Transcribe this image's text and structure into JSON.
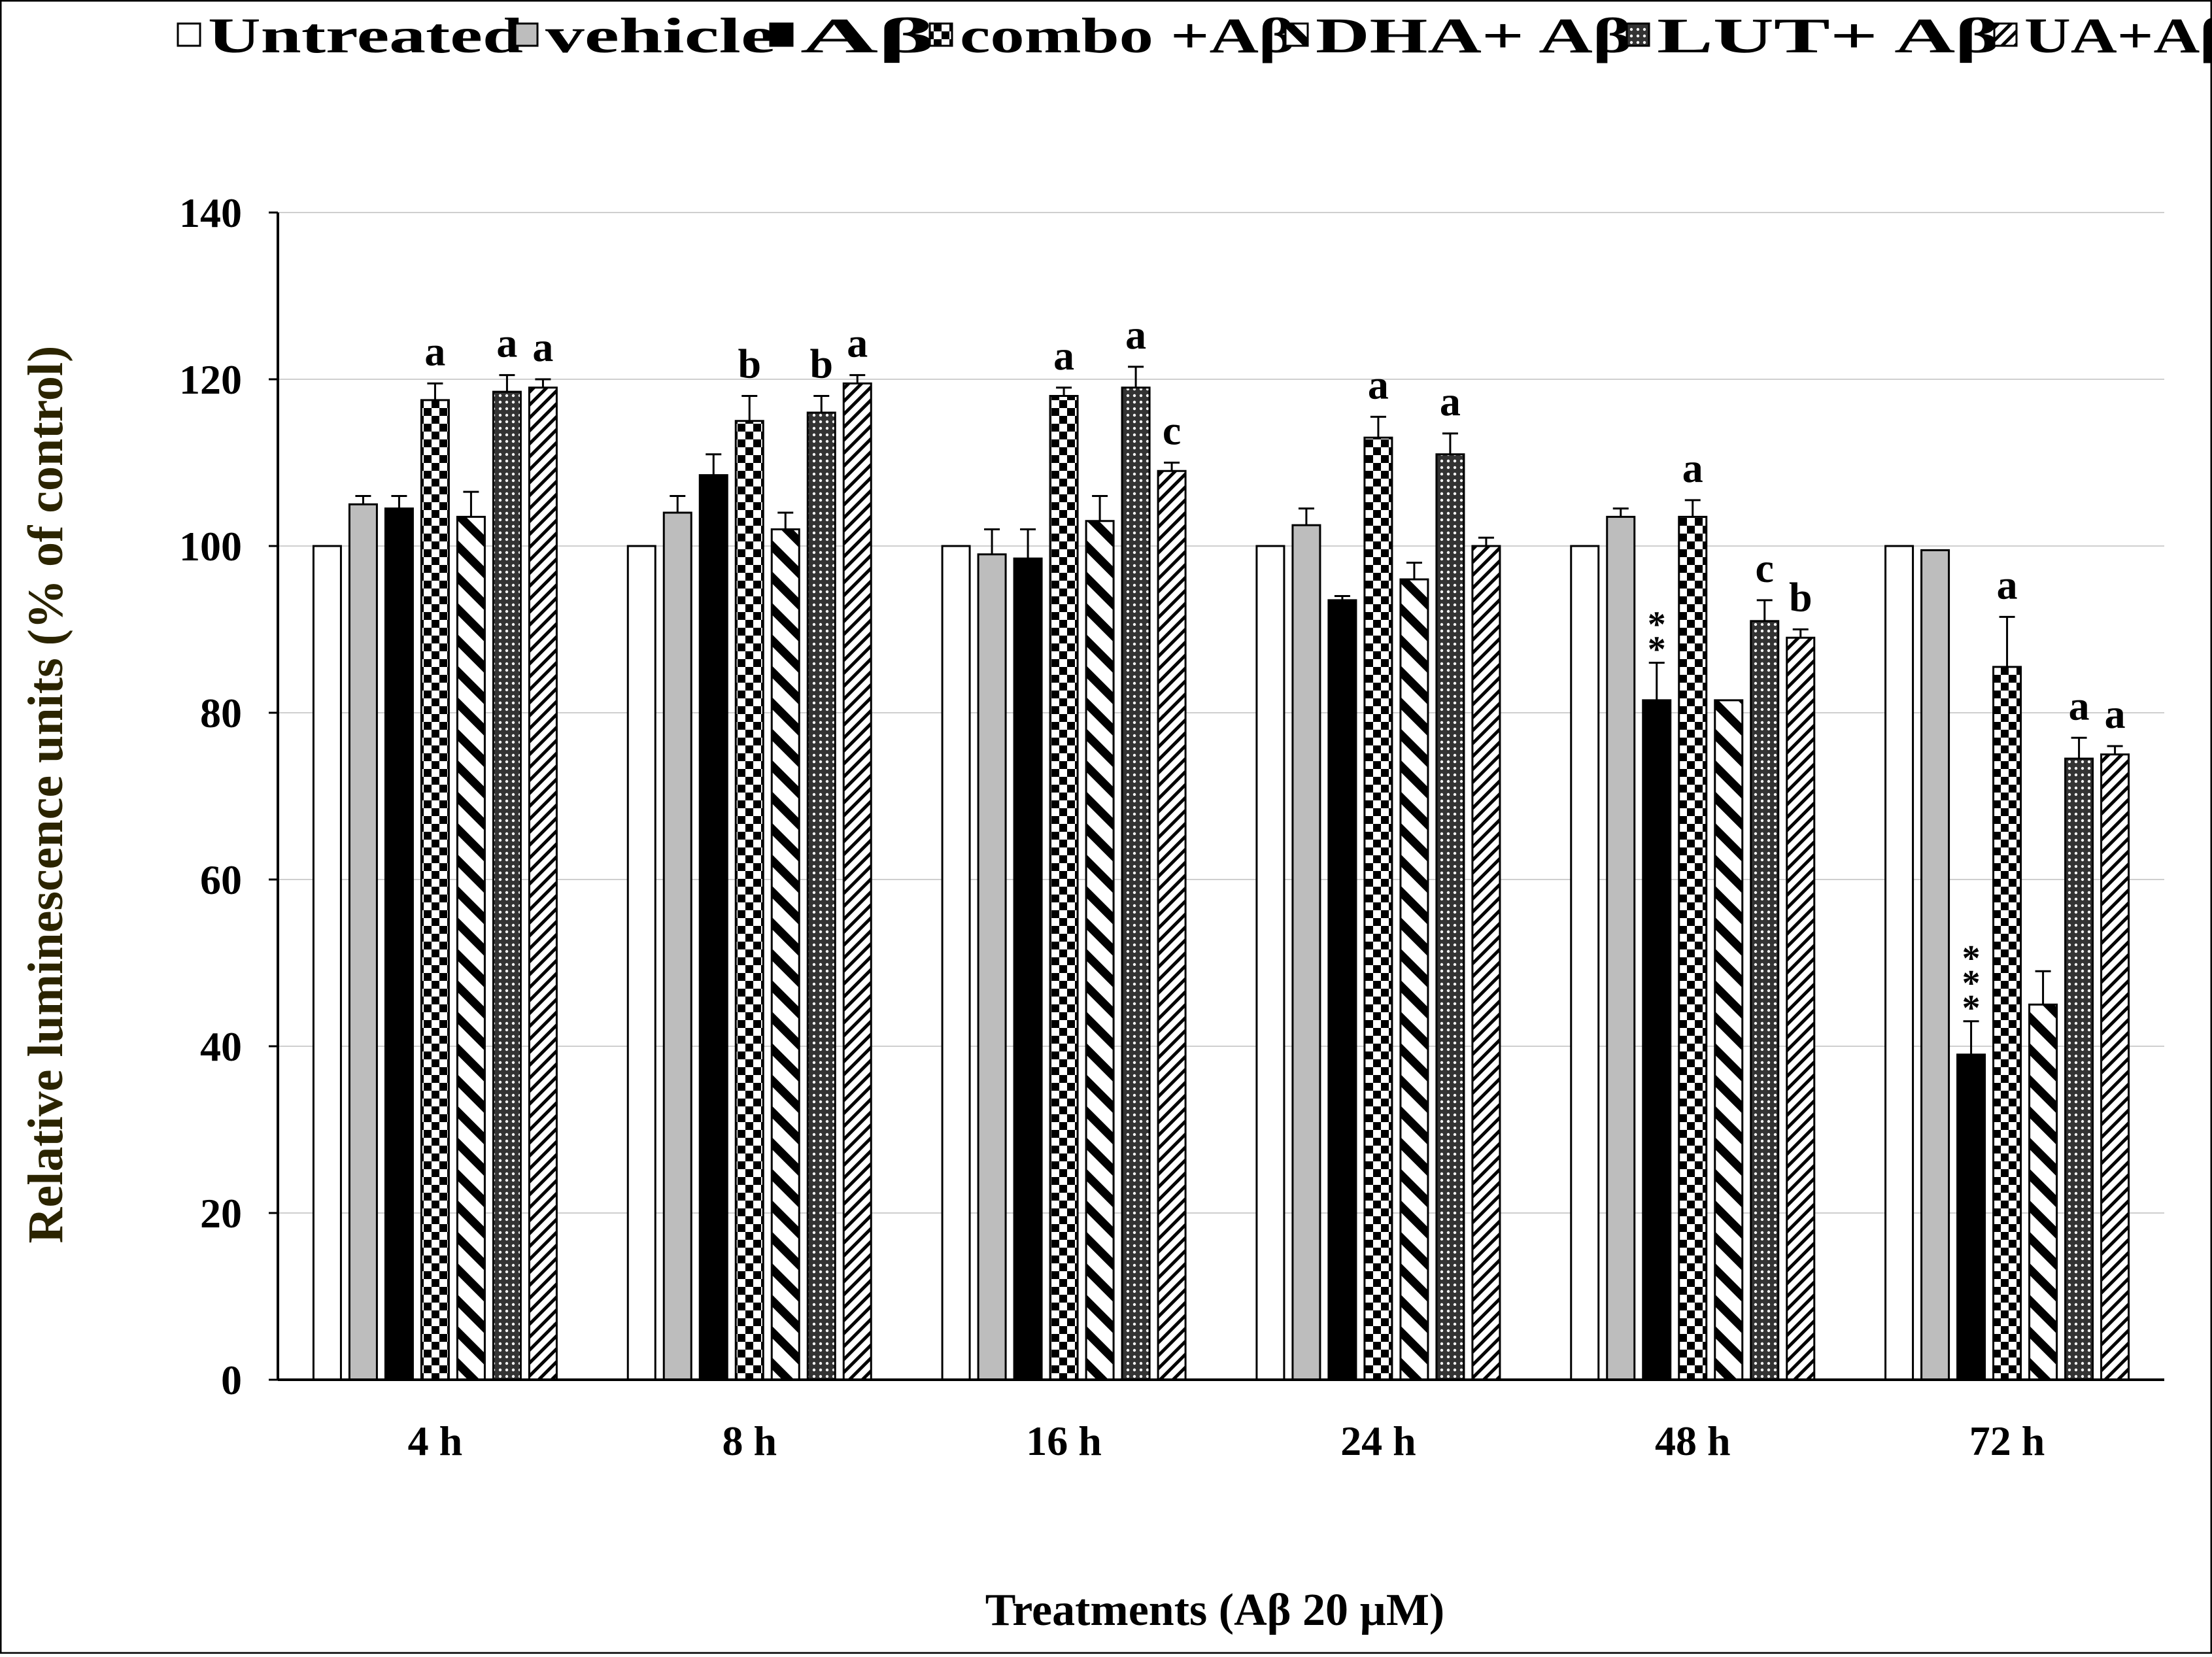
{
  "chart_data": {
    "type": "bar",
    "title": "",
    "xlabel": "Treatments (Aβ 20 µM)",
    "ylabel": "Relative luminescence units (% of control)",
    "ylim": [
      0,
      140
    ],
    "yticks": [
      0,
      20,
      40,
      60,
      80,
      100,
      120,
      140
    ],
    "grid": true,
    "legend_position": "top",
    "categories": [
      "4 h",
      "8 h",
      "16 h",
      "24 h",
      "48 h",
      "72 h"
    ],
    "series": [
      {
        "name": "Untreated",
        "pattern": "white",
        "values": [
          100,
          100,
          100,
          100,
          100,
          100
        ],
        "errors": [
          0,
          0,
          0,
          0,
          0,
          0
        ],
        "annotations": [
          "",
          "",
          "",
          "",
          "",
          ""
        ]
      },
      {
        "name": "vehicle",
        "pattern": "gray",
        "values": [
          105,
          104,
          99,
          102.5,
          103.5,
          99.5
        ],
        "errors": [
          1,
          2,
          3,
          2,
          1,
          0.3
        ],
        "annotations": [
          "",
          "",
          "",
          "",
          "",
          ""
        ]
      },
      {
        "name": "Aβ",
        "pattern": "black",
        "values": [
          104.5,
          108.5,
          98.5,
          93.5,
          81.5,
          39
        ],
        "errors": [
          1.5,
          2.5,
          3.5,
          0.5,
          4.5,
          4
        ],
        "annotations": [
          "",
          "",
          "",
          "",
          "**",
          "***"
        ]
      },
      {
        "name": "combo +Aβ",
        "pattern": "checker",
        "values": [
          117.5,
          115,
          118,
          113,
          103.5,
          85.5
        ],
        "errors": [
          2,
          3,
          1,
          2.5,
          2,
          6
        ],
        "annotations": [
          "a",
          "b",
          "a",
          "a",
          "a",
          "a"
        ]
      },
      {
        "name": "DHA+ Aβ",
        "pattern": "wide-diagonal",
        "values": [
          103.5,
          102,
          103,
          96,
          81.5,
          45
        ],
        "errors": [
          3,
          2,
          3,
          2,
          0.3,
          4
        ],
        "annotations": [
          "",
          "",
          "",
          "",
          "",
          ""
        ]
      },
      {
        "name": "LUT+ Aβ",
        "pattern": "dots",
        "values": [
          118.5,
          116,
          119,
          111,
          91,
          74.5
        ],
        "errors": [
          2,
          2,
          2.5,
          2.5,
          2.5,
          2.5
        ],
        "annotations": [
          "a",
          "b",
          "a",
          "a",
          "c",
          "a"
        ]
      },
      {
        "name": "UA+Aβ",
        "pattern": "dense-diagonal",
        "values": [
          119,
          119.5,
          109,
          100,
          89,
          75
        ],
        "errors": [
          1,
          1,
          1,
          1,
          1,
          1
        ],
        "annotations": [
          "a",
          "a",
          "c",
          "",
          "b",
          "a"
        ]
      }
    ]
  },
  "colors": {
    "ylabel_color": "#2b2400",
    "grid_color": "#cfcfcf",
    "gray_fill": "#bdbdbd",
    "black_fill": "#000000"
  }
}
